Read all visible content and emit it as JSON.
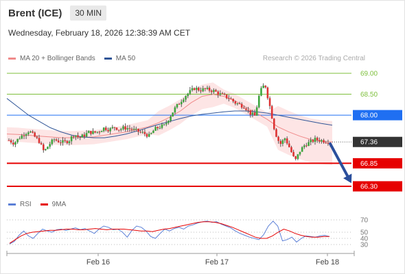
{
  "header": {
    "title": "Brent (ICE)",
    "timeframe": "30 MIN"
  },
  "datetime": "Wednesday, February 18, 2026 12:38:39 AM CET",
  "legend": [
    {
      "label": "MA 20 + Bollinger Bands",
      "color": "#f08a8a"
    },
    {
      "label": "MA 50",
      "color": "#2f5597"
    }
  ],
  "credit": "Research © 2026 Trading Central",
  "rsi_legend": [
    {
      "label": "RSI",
      "color": "#5b7fd6"
    },
    {
      "label": "9MA",
      "color": "#e60000"
    }
  ],
  "chart_data": [
    {
      "type": "candlestick",
      "ylim": [
        66.15,
        69.15
      ],
      "x_dates": [
        "Feb 16",
        "Feb 17",
        "Feb 18"
      ],
      "price_labels": [
        {
          "value": 69.0,
          "label": "69.00",
          "kind": "resistance",
          "color": "#7dbf3b"
        },
        {
          "value": 68.5,
          "label": "68.50",
          "kind": "resistance",
          "color": "#7dbf3b"
        },
        {
          "value": 68.0,
          "label": "68.00",
          "kind": "pivot",
          "color": "#1f6ff2"
        },
        {
          "value": 67.36,
          "label": "67.36",
          "kind": "last-price",
          "color": "#333333"
        },
        {
          "value": 66.85,
          "label": "66.85",
          "kind": "support",
          "color": "#e60000"
        },
        {
          "value": 66.3,
          "label": "66.30",
          "kind": "support",
          "color": "#e60000"
        }
      ],
      "projection": {
        "from": 67.35,
        "to": 66.4
      },
      "price_path": [
        67.4,
        67.33,
        67.45,
        67.55,
        67.63,
        67.5,
        67.38,
        67.12,
        67.3,
        67.42,
        67.37,
        67.35,
        67.4,
        67.55,
        67.46,
        67.52,
        67.6,
        67.58,
        67.62,
        67.7,
        67.65,
        67.72,
        67.66,
        67.7,
        67.68,
        67.64,
        67.6,
        67.56,
        67.5,
        67.66,
        67.72,
        67.75,
        67.95,
        68.15,
        68.3,
        68.45,
        68.55,
        68.65,
        68.6,
        68.62,
        68.6,
        68.57,
        68.5,
        68.45,
        68.4,
        68.3,
        68.25,
        68.2,
        68.05,
        67.98,
        68.55,
        68.75,
        68.2,
        67.6,
        67.3,
        67.45,
        67.2,
        66.9,
        67.15,
        67.3,
        67.35,
        67.42,
        67.4,
        67.38,
        67.36
      ],
      "ma20_path": [
        67.55,
        67.54,
        67.52,
        67.5,
        67.48,
        67.46,
        67.46,
        67.47,
        67.48,
        67.52,
        67.56,
        67.6,
        67.66,
        67.72,
        67.82,
        67.95,
        68.1,
        68.3,
        68.45,
        68.5,
        68.45,
        68.35,
        68.2,
        68.05,
        67.9,
        67.72,
        67.6,
        67.5,
        67.42,
        67.38,
        67.36
      ],
      "ma50_path": [
        68.4,
        68.2,
        68.0,
        67.85,
        67.7,
        67.6,
        67.52,
        67.48,
        67.46,
        67.46,
        67.5,
        67.55,
        67.62,
        67.7,
        67.78,
        67.85,
        67.92,
        67.98,
        68.02,
        68.05,
        68.08,
        68.1,
        68.1,
        68.08,
        68.05,
        68.0,
        67.95,
        67.9,
        67.85,
        67.8,
        67.76
      ]
    },
    {
      "type": "line",
      "title": "RSI",
      "ylim": [
        25,
        75
      ],
      "ticks": [
        70,
        50,
        40,
        30
      ],
      "series": [
        {
          "name": "RSI",
          "values": [
            31,
            35,
            45,
            52,
            44,
            40,
            48,
            55,
            52,
            50,
            54,
            55,
            53,
            55,
            57,
            54,
            56,
            52,
            48,
            55,
            60,
            58,
            54,
            55,
            50,
            42,
            53,
            60,
            58,
            52,
            43,
            40,
            48,
            55,
            52,
            56,
            58,
            55,
            60,
            62,
            65,
            67,
            68,
            66,
            67,
            63,
            60,
            57,
            52,
            48,
            45,
            42,
            40,
            38,
            46,
            60,
            68,
            60,
            36,
            38,
            42,
            34,
            40,
            44,
            43,
            42,
            44,
            45,
            43
          ]
        },
        {
          "name": "9MA",
          "values": [
            32,
            38,
            44,
            48,
            50,
            51,
            52,
            53,
            53,
            54,
            55,
            55,
            54,
            54,
            55,
            56,
            55,
            54,
            55,
            55,
            55,
            54,
            53,
            52,
            52,
            51,
            53,
            55,
            56,
            58,
            60,
            62,
            64,
            66,
            67,
            67,
            66,
            64,
            61,
            58,
            54,
            50,
            46,
            42,
            40,
            40,
            44,
            50,
            55,
            52,
            48,
            45,
            43,
            42,
            42,
            43,
            43
          ]
        }
      ]
    }
  ]
}
